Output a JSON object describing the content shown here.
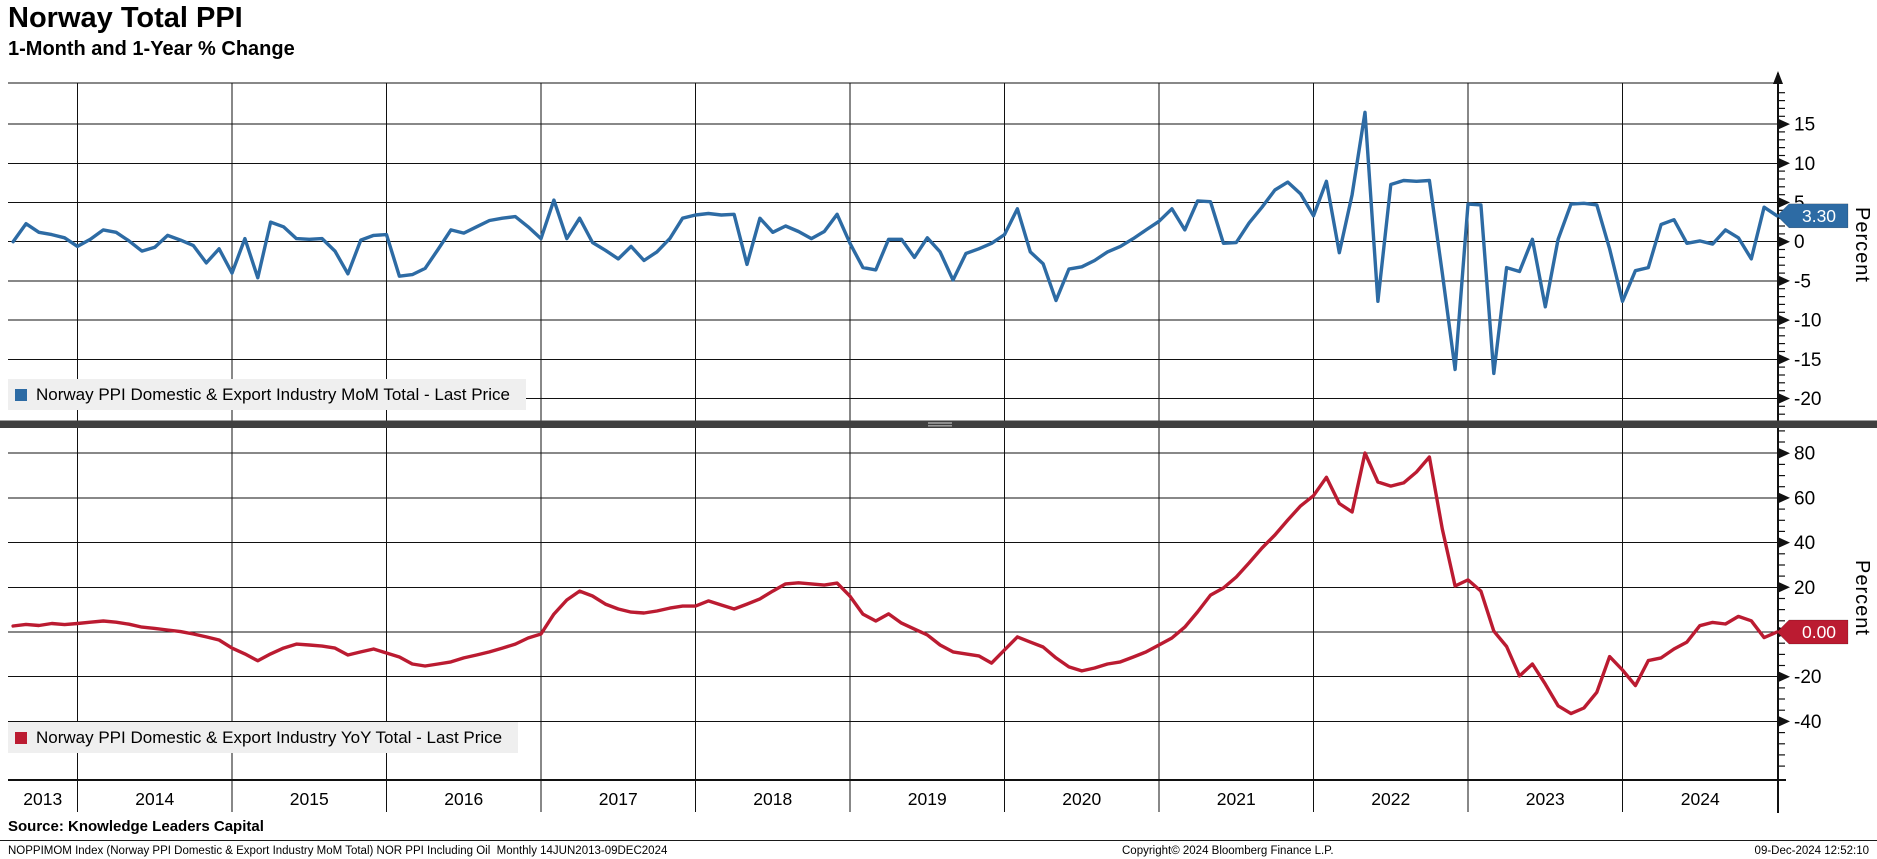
{
  "header": {
    "title": "Norway Total PPI",
    "subtitle": "1-Month and 1-Year % Change"
  },
  "axis": {
    "unit_label": "Percent"
  },
  "x_axis": {
    "years": [
      "2013",
      "2014",
      "2015",
      "2016",
      "2017",
      "2018",
      "2019",
      "2020",
      "2021",
      "2022",
      "2023",
      "2024"
    ]
  },
  "chart_data": [
    {
      "type": "line",
      "panel": "top",
      "legend": "Norway PPI Domestic & Export Industry MoM Total - Last Price",
      "ylabel": "Percent",
      "y_ticks": [
        15,
        10,
        5,
        0,
        -5,
        -10,
        -15,
        -20
      ],
      "ylim": [
        -22.9,
        20.2
      ],
      "x_start": "2013-07",
      "x_end": "2024-12",
      "frequency": "monthly",
      "last_price": "3.30",
      "series": [
        {
          "name": "Norway PPI Domestic & Export Industry MoM Total",
          "color": "#2d6ba4",
          "values": [
            0.0,
            2.3,
            1.2,
            0.9,
            0.5,
            -0.6,
            0.3,
            1.5,
            1.2,
            0.1,
            -1.2,
            -0.7,
            0.8,
            0.2,
            -0.5,
            -2.7,
            -0.9,
            -4.0,
            0.4,
            -4.6,
            2.5,
            1.9,
            0.4,
            0.3,
            0.4,
            -1.2,
            -4.1,
            0.2,
            0.8,
            0.9,
            -4.4,
            -4.2,
            -3.4,
            -1.0,
            1.5,
            1.1,
            1.9,
            2.7,
            3.0,
            3.2,
            1.9,
            0.4,
            5.3,
            0.4,
            3.0,
            -0.1,
            -1.1,
            -2.2,
            -0.6,
            -2.4,
            -1.3,
            0.4,
            3.0,
            3.4,
            3.6,
            3.4,
            3.5,
            -2.9,
            3.0,
            1.2,
            2.0,
            1.3,
            0.4,
            1.3,
            3.5,
            -0.2,
            -3.3,
            -3.6,
            0.3,
            0.3,
            -2.0,
            0.5,
            -1.3,
            -4.9,
            -1.5,
            -0.9,
            -0.2,
            0.9,
            4.2,
            -1.3,
            -2.8,
            -7.5,
            -3.5,
            -3.2,
            -2.4,
            -1.3,
            -0.6,
            0.4,
            1.5,
            2.6,
            4.2,
            1.5,
            5.2,
            5.1,
            -0.2,
            -0.1,
            2.4,
            4.4,
            6.6,
            7.6,
            6.1,
            3.3,
            7.7,
            -1.4,
            6.0,
            16.5,
            -7.6,
            7.3,
            7.8,
            7.7,
            7.8,
            -4.0,
            -16.3,
            4.8,
            4.7,
            -16.8,
            -3.3,
            -3.8,
            0.3,
            -8.3,
            0.3,
            4.8,
            4.9,
            4.7,
            -0.9,
            -7.6,
            -3.7,
            -3.3,
            2.2,
            2.8,
            -0.2,
            0.1,
            -0.3,
            1.5,
            0.5,
            -2.2,
            4.4,
            3.3
          ]
        }
      ]
    },
    {
      "type": "line",
      "panel": "bottom",
      "legend": "Norway PPI Domestic & Export Industry YoY Total - Last Price",
      "ylabel": "Percent",
      "y_ticks": [
        80,
        60,
        40,
        20,
        0,
        -20,
        -40
      ],
      "ylim": [
        -66,
        91
      ],
      "x_start": "2013-07",
      "x_end": "2024-12",
      "frequency": "monthly",
      "last_price": "0.00",
      "series": [
        {
          "name": "Norway PPI Domestic & Export Industry YoY Total",
          "color": "#bb1b31",
          "values": [
            2.7,
            3.4,
            2.9,
            3.8,
            3.3,
            3.8,
            4.4,
            4.9,
            4.4,
            3.5,
            2.2,
            1.6,
            0.9,
            0.2,
            -0.9,
            -2.2,
            -3.6,
            -7.2,
            -9.8,
            -12.9,
            -9.8,
            -7.2,
            -5.4,
            -5.8,
            -6.3,
            -7.2,
            -10.3,
            -8.9,
            -7.6,
            -9.4,
            -11.2,
            -14.3,
            -15.2,
            -14.3,
            -13.4,
            -11.6,
            -10.3,
            -8.9,
            -7.2,
            -5.4,
            -2.7,
            -0.9,
            8.0,
            14.3,
            18.3,
            16.1,
            12.5,
            10.3,
            8.9,
            8.5,
            9.4,
            10.7,
            11.6,
            11.6,
            13.9,
            12.1,
            10.3,
            12.5,
            14.8,
            18.3,
            21.5,
            22.0,
            21.5,
            21.0,
            21.9,
            16.0,
            8.0,
            4.9,
            8.1,
            4.0,
            1.3,
            -1.3,
            -5.8,
            -8.9,
            -9.8,
            -10.7,
            -13.9,
            -8.0,
            -2.2,
            -4.5,
            -6.7,
            -11.6,
            -15.6,
            -17.4,
            -16.1,
            -14.3,
            -13.4,
            -11.2,
            -8.9,
            -5.8,
            -2.7,
            2.2,
            9.0,
            16.5,
            19.7,
            24.6,
            30.9,
            37.6,
            43.4,
            50.1,
            56.4,
            61.0,
            69.2,
            57.5,
            53.7,
            80.1,
            67.1,
            65.3,
            66.7,
            71.6,
            78.3,
            46.1,
            20.6,
            23.3,
            18.3,
            0.4,
            -6.5,
            -19.7,
            -14.3,
            -23.3,
            -33.0,
            -36.5,
            -34.0,
            -27.0,
            -11.0,
            -17.0,
            -24.0,
            -12.8,
            -11.6,
            -7.6,
            -4.5,
            2.8,
            4.3,
            3.6,
            7.0,
            5.0,
            -2.5,
            0.0
          ]
        }
      ]
    }
  ],
  "footer": {
    "source": "Source: Knowledge Leaders Capital",
    "security_info": "NOPPIMOM Index (Norway PPI Domestic & Export Industry MoM Total) NOR PPI Including Oil  Monthly 14JUN2013-09DEC2024",
    "copyright": "Copyright© 2024 Bloomberg Finance L.P.",
    "timestamp": "09-Dec-2024 12:52:10"
  }
}
